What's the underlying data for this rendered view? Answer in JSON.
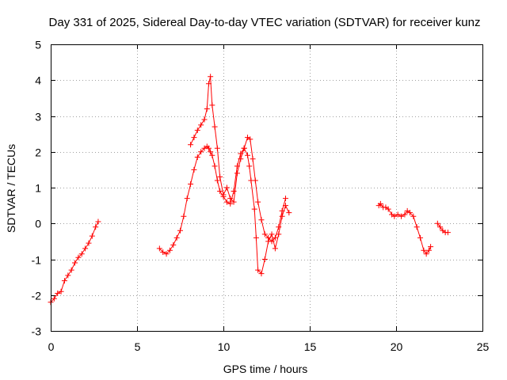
{
  "chart_data": {
    "type": "line",
    "title": "Day 331 of 2025, Sidereal Day-to-day VTEC variation (SDTVAR) for receiver kunz",
    "xlabel": "GPS time / hours",
    "ylabel": "SDTVAR / TECUs",
    "xlim": [
      0,
      25
    ],
    "ylim": [
      -3,
      5
    ],
    "xticks": [
      "0",
      "5",
      "10",
      "15",
      "20",
      "25"
    ],
    "yticks": [
      "-3",
      "-2",
      "-1",
      "0",
      "1",
      "2",
      "3",
      "4",
      "5"
    ],
    "grid": true,
    "marker": "plus",
    "color": "#ff0000",
    "series": [
      {
        "name": "seg1",
        "x": [
          0.0,
          0.2,
          0.4,
          0.6,
          0.8,
          1.0,
          1.2,
          1.4,
          1.6,
          1.8,
          2.0,
          2.2,
          2.4,
          2.6,
          2.75
        ],
        "y": [
          -2.2,
          -2.1,
          -1.95,
          -1.9,
          -1.6,
          -1.45,
          -1.3,
          -1.1,
          -0.95,
          -0.85,
          -0.7,
          -0.55,
          -0.35,
          -0.1,
          0.05
        ]
      },
      {
        "name": "seg2",
        "x": [
          6.3,
          6.5,
          6.7,
          6.9,
          7.1,
          7.3,
          7.5,
          7.7,
          7.9,
          8.1,
          8.3,
          8.5,
          8.7,
          8.9,
          9.05,
          9.15,
          9.25,
          9.35,
          9.5,
          9.65,
          9.8,
          10.0,
          10.2,
          10.4,
          10.6,
          10.8,
          11.0,
          11.2,
          11.4,
          11.5,
          11.6,
          11.8,
          11.9,
          12.0,
          12.2,
          12.4,
          12.6,
          12.8,
          13.0,
          13.2,
          13.4,
          13.6,
          13.8
        ],
        "y": [
          -0.7,
          -0.8,
          -0.85,
          -0.75,
          -0.6,
          -0.4,
          -0.2,
          0.2,
          0.7,
          1.1,
          1.5,
          1.85,
          2.0,
          2.1,
          2.15,
          2.1,
          2.0,
          1.9,
          1.6,
          1.2,
          0.9,
          0.75,
          0.6,
          0.55,
          0.9,
          1.6,
          1.95,
          2.1,
          1.9,
          1.6,
          1.2,
          0.4,
          -0.4,
          -1.3,
          -1.4,
          -1.0,
          -0.5,
          -0.3,
          -0.7,
          -0.3,
          0.2,
          0.5,
          0.3
        ]
      },
      {
        "name": "seg3",
        "x": [
          8.1,
          8.3,
          8.5,
          8.7,
          8.9,
          9.05,
          9.15,
          9.25,
          9.35,
          9.5,
          9.65,
          9.8,
          10.0,
          10.2,
          10.4,
          10.6,
          10.8,
          11.0,
          11.2,
          11.4,
          11.55,
          11.7,
          11.85,
          12.0,
          12.2,
          12.4,
          12.6,
          12.8,
          13.0,
          13.2,
          13.4,
          13.6
        ],
        "y": [
          2.2,
          2.4,
          2.6,
          2.75,
          2.9,
          3.2,
          3.9,
          4.1,
          3.3,
          2.7,
          2.1,
          1.3,
          0.8,
          1.0,
          0.7,
          0.6,
          1.4,
          1.8,
          2.1,
          2.4,
          2.35,
          1.8,
          1.2,
          0.6,
          0.1,
          -0.3,
          -0.4,
          -0.5,
          -0.4,
          -0.1,
          0.35,
          0.7
        ]
      },
      {
        "name": "seg4",
        "x": [
          19.0,
          19.1,
          19.25,
          19.4,
          19.55,
          19.75,
          19.9,
          20.1,
          20.3,
          20.5,
          20.65,
          20.8,
          21.0,
          21.2,
          21.4,
          21.6,
          21.75,
          21.9,
          22.0
        ],
        "y": [
          0.5,
          0.55,
          0.45,
          0.45,
          0.4,
          0.25,
          0.2,
          0.25,
          0.2,
          0.25,
          0.35,
          0.3,
          0.2,
          -0.1,
          -0.4,
          -0.75,
          -0.85,
          -0.75,
          -0.65
        ]
      },
      {
        "name": "seg5",
        "x": [
          22.4,
          22.55,
          22.7,
          22.85,
          23.0
        ],
        "y": [
          0.0,
          -0.1,
          -0.2,
          -0.25,
          -0.25
        ]
      }
    ]
  }
}
